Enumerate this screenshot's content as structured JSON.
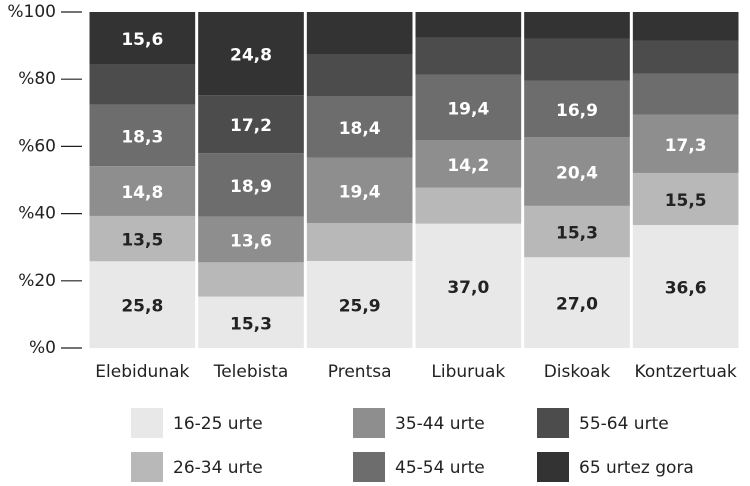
{
  "chart_data": {
    "type": "stacked_bar",
    "categories": [
      "Elebidunak",
      "Telebista",
      "Prentsa",
      "Liburuak",
      "Diskoak",
      "Kontzertuak"
    ],
    "series": [
      {
        "name": "16-25 urte",
        "color": "#e8e8e8",
        "values": [
          25.8,
          15.3,
          25.9,
          37.0,
          27.0,
          36.6
        ],
        "value_labels": [
          "25,8",
          "15,3",
          "25,9",
          "37,0",
          "27,0",
          "36,6"
        ]
      },
      {
        "name": "26-34 urte",
        "color": "#b8b8b8",
        "values": [
          13.5,
          10.2,
          11.3,
          10.7,
          15.3,
          15.5
        ],
        "value_labels": [
          "13,5",
          null,
          null,
          null,
          "15,3",
          "15,5"
        ]
      },
      {
        "name": "35-44 urte",
        "color": "#8e8e8e",
        "values": [
          14.8,
          13.6,
          19.4,
          14.2,
          20.4,
          17.3
        ],
        "value_labels": [
          "14,8",
          "13,6",
          "19,4",
          "14,2",
          "20,4",
          "17,3"
        ]
      },
      {
        "name": "45-54 urte",
        "color": "#6d6d6d",
        "values": [
          18.3,
          18.9,
          18.4,
          19.4,
          16.9,
          12.2
        ],
        "value_labels": [
          "18,3",
          "18,9",
          "18,4",
          "19,4",
          "16,9",
          null
        ]
      },
      {
        "name": "55-64 urte",
        "color": "#4c4c4c",
        "values": [
          12.0,
          17.2,
          12.5,
          11.0,
          12.5,
          9.8
        ],
        "value_labels": [
          null,
          "17,2",
          null,
          null,
          null,
          null
        ]
      },
      {
        "name": "65 urtez gora",
        "color": "#333333",
        "values": [
          15.6,
          24.8,
          12.5,
          7.7,
          7.9,
          8.6
        ],
        "value_labels": [
          "15,6",
          "24,8",
          null,
          null,
          null,
          null
        ]
      }
    ],
    "ylim": [
      0,
      100
    ],
    "yticks": [
      {
        "value": 0,
        "label": "%0"
      },
      {
        "value": 20,
        "label": "%20"
      },
      {
        "value": 40,
        "label": "%40"
      },
      {
        "value": 60,
        "label": "%60"
      },
      {
        "value": 80,
        "label": "%80"
      },
      {
        "value": 100,
        "label": "%100"
      }
    ]
  }
}
